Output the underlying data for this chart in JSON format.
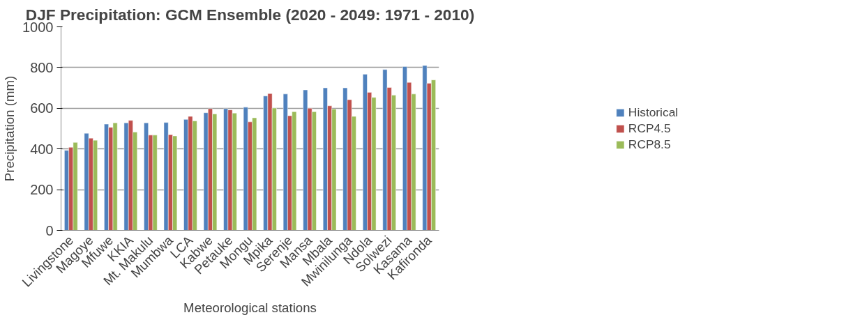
{
  "chart_data": {
    "type": "bar",
    "title": "DJF Precipitation: GCM Ensemble (2020 - 2049: 1971 - 2010)",
    "xlabel": "Meteorological stations",
    "ylabel": "Precipitation (mm)",
    "categories": [
      "Livingstone",
      "Magoye",
      "Mfuwe",
      "KKIA",
      "Mt. Makulu",
      "Mumbwa",
      "LCA",
      "Kabwe",
      "Petauke",
      "Mongu",
      "Mpika",
      "Serenje",
      "Mansa",
      "Mbala",
      "Mwinilunga",
      "Ndola",
      "Solwezi",
      "Kasama",
      "Kafironda"
    ],
    "series": [
      {
        "name": "Historical",
        "color": "#4f81bd",
        "values": [
          393,
          477,
          522,
          528,
          528,
          530,
          545,
          578,
          598,
          605,
          660,
          670,
          690,
          700,
          700,
          767,
          790,
          805,
          810
        ]
      },
      {
        "name": "RCP4.5",
        "color": "#c0504d",
        "values": [
          408,
          453,
          506,
          540,
          468,
          470,
          560,
          598,
          592,
          533,
          672,
          563,
          600,
          612,
          642,
          678,
          702,
          727,
          723
        ]
      },
      {
        "name": "RCP8.5",
        "color": "#9bbb59",
        "values": [
          432,
          443,
          528,
          483,
          468,
          464,
          538,
          572,
          576,
          553,
          601,
          583,
          583,
          596,
          560,
          653,
          664,
          670,
          739
        ]
      }
    ],
    "ylim": [
      0,
      1000
    ],
    "yticks": [
      0,
      200,
      400,
      600,
      800,
      1000
    ],
    "grid": "y",
    "legend": "right"
  }
}
